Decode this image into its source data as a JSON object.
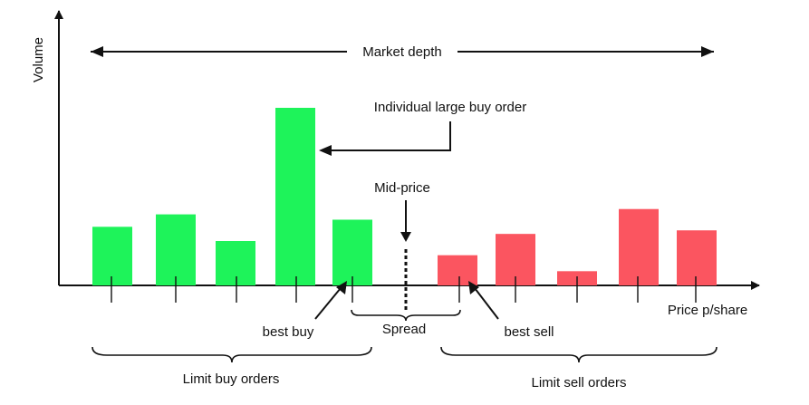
{
  "labels": {
    "volume": "Volume",
    "market_depth": "Market depth",
    "large_buy": "Individual large buy order",
    "mid_price": "Mid-price",
    "spread": "Spread",
    "best_buy": "best buy",
    "best_sell": "best sell",
    "price": "Price p/share",
    "limit_buy": "Limit buy orders",
    "limit_sell": "Limit sell orders"
  },
  "colors": {
    "buy": "#1ef35a",
    "sell": "#fb5560",
    "line": "#111111"
  },
  "buy_orders": [
    {
      "volume": 0.33
    },
    {
      "volume": 0.4
    },
    {
      "volume": 0.25
    },
    {
      "volume": 1.0
    },
    {
      "volume": 0.37
    }
  ],
  "sell_orders": [
    {
      "volume": 0.17
    },
    {
      "volume": 0.29
    },
    {
      "volume": 0.08
    },
    {
      "volume": 0.43
    },
    {
      "volume": 0.31
    }
  ]
}
